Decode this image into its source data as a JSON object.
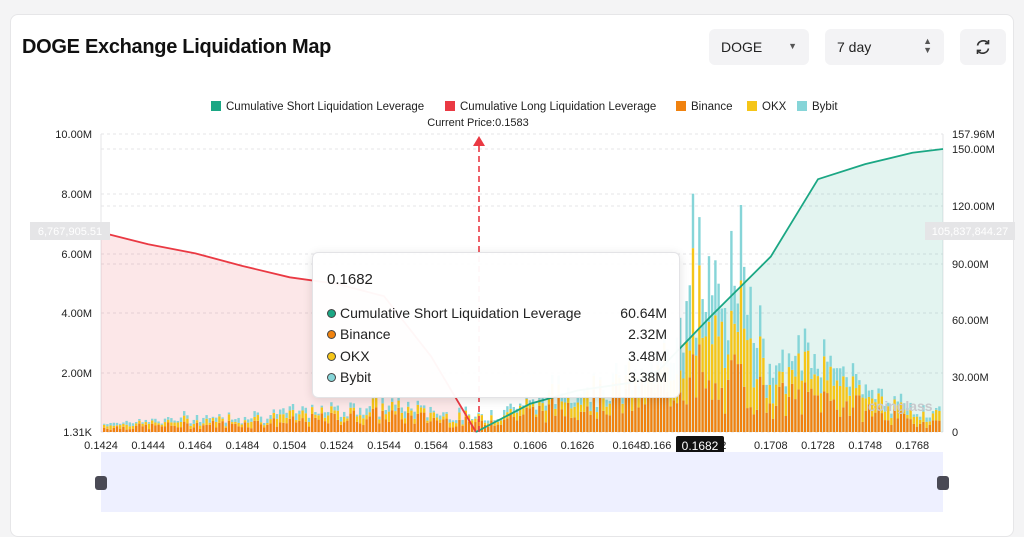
{
  "header": {
    "title": "DOGE Exchange Liquidation Map"
  },
  "controls": {
    "coin_select": "DOGE",
    "period_select": "7 day",
    "refresh_icon": "refresh-icon"
  },
  "legend": [
    {
      "label": "Cumulative Short Liquidation Leverage",
      "color": "#1ba784"
    },
    {
      "label": "Cumulative Long Liquidation Leverage",
      "color": "#ea3943"
    },
    {
      "label": "Binance",
      "color": "#f0820f"
    },
    {
      "label": "OKX",
      "color": "#f5c518"
    },
    {
      "label": "Bybit",
      "color": "#86d5d8"
    }
  ],
  "current_price_label": "Current Price:0.1583",
  "left_axis_labels": [
    "10.00M",
    "8.00M",
    "6.00M",
    "4.00M",
    "2.00M",
    "1.31K"
  ],
  "right_axis_labels": [
    "157.96M",
    "150.00M",
    "120.00M",
    "90.00M",
    "60.00M",
    "30.00M",
    "0"
  ],
  "left_marker": "6,767,905.51",
  "right_marker": "105,837,844.27",
  "x_labels": [
    "0.1424",
    "0.1444",
    "0.1464",
    "0.1484",
    "0.1504",
    "0.1524",
    "0.1544",
    "0.1564",
    "0.1583",
    "0.1606",
    "0.1626",
    "0.1648",
    "0.166",
    "0.1682",
    "0.1708",
    "0.1728",
    "0.1748",
    "0.1768"
  ],
  "x_highlight": "0.1682",
  "watermark": "coinglass",
  "tooltip": {
    "title": "0.1682",
    "rows": [
      {
        "label": "Cumulative Short Liquidation Leverage",
        "value": "60.64M",
        "color": "#1ba784"
      },
      {
        "label": "Binance",
        "value": "2.32M",
        "color": "#f0820f"
      },
      {
        "label": "OKX",
        "value": "3.48M",
        "color": "#f5c518"
      },
      {
        "label": "Bybit",
        "value": "3.38M",
        "color": "#86d5d8"
      }
    ]
  },
  "chart_data": {
    "type": "bar",
    "x_range": [
      0.1424,
      0.1781
    ],
    "left_ylim": [
      0,
      10000000
    ],
    "right_ylim": [
      0,
      157960000
    ],
    "current_price": 0.1583,
    "grid": true,
    "legend_position": "top",
    "series": [
      {
        "name": "Cumulative Long Liquidation Leverage",
        "type": "area",
        "axis": "right",
        "x": [
          0.1424,
          0.1444,
          0.1464,
          0.1484,
          0.1504,
          0.1524,
          0.1544,
          0.1564,
          0.1583
        ],
        "values": [
          105837844,
          99500000,
          94700000,
          88000000,
          82000000,
          78500000,
          72000000,
          40000000,
          0
        ]
      },
      {
        "name": "Cumulative Short Liquidation Leverage",
        "type": "area",
        "axis": "right",
        "x": [
          0.1583,
          0.1606,
          0.1626,
          0.1648,
          0.166,
          0.1682,
          0.1708,
          0.1728,
          0.1748,
          0.1768,
          0.1781
        ],
        "values": [
          0,
          15000000,
          22000000,
          26000000,
          32000000,
          60640000,
          93000000,
          134000000,
          142000000,
          148000000,
          150000000
        ]
      },
      {
        "name": "Binance",
        "axis": "left",
        "x": [
          0.1424,
          0.1464,
          0.1504,
          0.1544,
          0.1583,
          0.1626,
          0.166,
          0.1682,
          0.1708,
          0.1728,
          0.1768
        ],
        "values": [
          150000,
          250000,
          350000,
          600000,
          300000,
          1000000,
          1300000,
          2320000,
          1100000,
          1200000,
          350000
        ]
      },
      {
        "name": "OKX",
        "axis": "left",
        "x": [
          0.1424,
          0.1464,
          0.1504,
          0.1544,
          0.1583,
          0.1626,
          0.166,
          0.1682,
          0.1708,
          0.1728,
          0.1768
        ],
        "values": [
          100000,
          150000,
          200000,
          250000,
          150000,
          400000,
          500000,
          3480000,
          900000,
          1000000,
          250000
        ]
      },
      {
        "name": "Bybit",
        "axis": "left",
        "x": [
          0.1424,
          0.1464,
          0.1504,
          0.1544,
          0.1583,
          0.1626,
          0.166,
          0.1682,
          0.1708,
          0.1728,
          0.1768
        ],
        "values": [
          80000,
          120000,
          150000,
          200000,
          100000,
          250000,
          300000,
          3380000,
          600000,
          500000,
          150000
        ]
      }
    ]
  }
}
